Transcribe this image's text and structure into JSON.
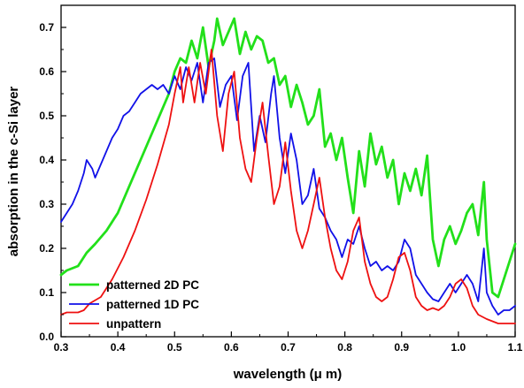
{
  "chart_data": {
    "type": "line",
    "xlabel": "wavelength (μ m)",
    "ylabel": "absorption in the c-Si layer",
    "xlim": [
      0.3,
      1.1
    ],
    "ylim": [
      0.0,
      0.75
    ],
    "xticks": [
      "0.3",
      "0.4",
      "0.5",
      "0.6",
      "0.7",
      "0.8",
      "0.9",
      "1.0",
      "1.1"
    ],
    "yticks": [
      "0.0",
      "0.1",
      "0.2",
      "0.3",
      "0.4",
      "0.5",
      "0.6",
      "0.7"
    ],
    "grid": false,
    "legend_position": "bottom-left",
    "series": [
      {
        "name": "patterned 2D PC",
        "color": "#22e01a",
        "points": [
          [
            0.3,
            0.14
          ],
          [
            0.31,
            0.15
          ],
          [
            0.33,
            0.16
          ],
          [
            0.345,
            0.19
          ],
          [
            0.36,
            0.21
          ],
          [
            0.38,
            0.24
          ],
          [
            0.4,
            0.28
          ],
          [
            0.42,
            0.34
          ],
          [
            0.44,
            0.4
          ],
          [
            0.46,
            0.46
          ],
          [
            0.48,
            0.52
          ],
          [
            0.49,
            0.55
          ],
          [
            0.5,
            0.6
          ],
          [
            0.51,
            0.63
          ],
          [
            0.52,
            0.62
          ],
          [
            0.53,
            0.67
          ],
          [
            0.54,
            0.63
          ],
          [
            0.55,
            0.7
          ],
          [
            0.56,
            0.61
          ],
          [
            0.57,
            0.67
          ],
          [
            0.575,
            0.72
          ],
          [
            0.585,
            0.66
          ],
          [
            0.595,
            0.69
          ],
          [
            0.605,
            0.72
          ],
          [
            0.615,
            0.64
          ],
          [
            0.625,
            0.69
          ],
          [
            0.635,
            0.65
          ],
          [
            0.645,
            0.68
          ],
          [
            0.655,
            0.67
          ],
          [
            0.665,
            0.62
          ],
          [
            0.675,
            0.63
          ],
          [
            0.685,
            0.57
          ],
          [
            0.695,
            0.59
          ],
          [
            0.705,
            0.52
          ],
          [
            0.715,
            0.57
          ],
          [
            0.725,
            0.53
          ],
          [
            0.735,
            0.48
          ],
          [
            0.745,
            0.5
          ],
          [
            0.755,
            0.56
          ],
          [
            0.765,
            0.43
          ],
          [
            0.775,
            0.46
          ],
          [
            0.785,
            0.4
          ],
          [
            0.795,
            0.45
          ],
          [
            0.805,
            0.36
          ],
          [
            0.815,
            0.28
          ],
          [
            0.825,
            0.42
          ],
          [
            0.835,
            0.34
          ],
          [
            0.845,
            0.46
          ],
          [
            0.855,
            0.39
          ],
          [
            0.865,
            0.43
          ],
          [
            0.875,
            0.36
          ],
          [
            0.885,
            0.4
          ],
          [
            0.895,
            0.3
          ],
          [
            0.905,
            0.37
          ],
          [
            0.915,
            0.33
          ],
          [
            0.925,
            0.38
          ],
          [
            0.935,
            0.32
          ],
          [
            0.945,
            0.41
          ],
          [
            0.955,
            0.22
          ],
          [
            0.965,
            0.16
          ],
          [
            0.975,
            0.22
          ],
          [
            0.985,
            0.25
          ],
          [
            0.995,
            0.21
          ],
          [
            1.005,
            0.24
          ],
          [
            1.015,
            0.28
          ],
          [
            1.025,
            0.3
          ],
          [
            1.035,
            0.23
          ],
          [
            1.045,
            0.35
          ],
          [
            1.05,
            0.22
          ],
          [
            1.06,
            0.1
          ],
          [
            1.07,
            0.09
          ],
          [
            1.08,
            0.13
          ],
          [
            1.09,
            0.17
          ],
          [
            1.1,
            0.21
          ]
        ]
      },
      {
        "name": "patterned 1D PC",
        "color": "#1111e8",
        "points": [
          [
            0.3,
            0.26
          ],
          [
            0.31,
            0.28
          ],
          [
            0.32,
            0.3
          ],
          [
            0.33,
            0.33
          ],
          [
            0.34,
            0.37
          ],
          [
            0.345,
            0.4
          ],
          [
            0.355,
            0.38
          ],
          [
            0.36,
            0.36
          ],
          [
            0.37,
            0.39
          ],
          [
            0.38,
            0.42
          ],
          [
            0.39,
            0.45
          ],
          [
            0.4,
            0.47
          ],
          [
            0.41,
            0.5
          ],
          [
            0.42,
            0.51
          ],
          [
            0.43,
            0.53
          ],
          [
            0.44,
            0.55
          ],
          [
            0.45,
            0.56
          ],
          [
            0.46,
            0.57
          ],
          [
            0.47,
            0.56
          ],
          [
            0.48,
            0.57
          ],
          [
            0.49,
            0.55
          ],
          [
            0.5,
            0.59
          ],
          [
            0.51,
            0.56
          ],
          [
            0.52,
            0.61
          ],
          [
            0.53,
            0.58
          ],
          [
            0.54,
            0.62
          ],
          [
            0.55,
            0.53
          ],
          [
            0.56,
            0.62
          ],
          [
            0.57,
            0.63
          ],
          [
            0.58,
            0.52
          ],
          [
            0.59,
            0.57
          ],
          [
            0.6,
            0.59
          ],
          [
            0.61,
            0.49
          ],
          [
            0.62,
            0.59
          ],
          [
            0.63,
            0.62
          ],
          [
            0.64,
            0.42
          ],
          [
            0.65,
            0.5
          ],
          [
            0.66,
            0.44
          ],
          [
            0.67,
            0.55
          ],
          [
            0.675,
            0.59
          ],
          [
            0.685,
            0.45
          ],
          [
            0.695,
            0.37
          ],
          [
            0.705,
            0.46
          ],
          [
            0.715,
            0.4
          ],
          [
            0.725,
            0.3
          ],
          [
            0.735,
            0.32
          ],
          [
            0.745,
            0.38
          ],
          [
            0.755,
            0.29
          ],
          [
            0.765,
            0.27
          ],
          [
            0.775,
            0.24
          ],
          [
            0.785,
            0.22
          ],
          [
            0.795,
            0.18
          ],
          [
            0.805,
            0.22
          ],
          [
            0.815,
            0.21
          ],
          [
            0.825,
            0.25
          ],
          [
            0.835,
            0.2
          ],
          [
            0.845,
            0.16
          ],
          [
            0.855,
            0.17
          ],
          [
            0.865,
            0.15
          ],
          [
            0.875,
            0.16
          ],
          [
            0.885,
            0.15
          ],
          [
            0.895,
            0.17
          ],
          [
            0.905,
            0.22
          ],
          [
            0.915,
            0.2
          ],
          [
            0.925,
            0.14
          ],
          [
            0.935,
            0.12
          ],
          [
            0.945,
            0.1
          ],
          [
            0.955,
            0.085
          ],
          [
            0.965,
            0.08
          ],
          [
            0.975,
            0.1
          ],
          [
            0.985,
            0.12
          ],
          [
            0.995,
            0.1
          ],
          [
            1.005,
            0.12
          ],
          [
            1.015,
            0.14
          ],
          [
            1.025,
            0.12
          ],
          [
            1.035,
            0.08
          ],
          [
            1.045,
            0.2
          ],
          [
            1.05,
            0.1
          ],
          [
            1.06,
            0.07
          ],
          [
            1.07,
            0.05
          ],
          [
            1.08,
            0.06
          ],
          [
            1.09,
            0.06
          ],
          [
            1.1,
            0.07
          ]
        ]
      },
      {
        "name": "unpattern",
        "color": "#ee1111",
        "points": [
          [
            0.3,
            0.05
          ],
          [
            0.31,
            0.055
          ],
          [
            0.33,
            0.055
          ],
          [
            0.34,
            0.06
          ],
          [
            0.35,
            0.075
          ],
          [
            0.37,
            0.09
          ],
          [
            0.39,
            0.13
          ],
          [
            0.41,
            0.18
          ],
          [
            0.43,
            0.24
          ],
          [
            0.45,
            0.31
          ],
          [
            0.47,
            0.39
          ],
          [
            0.49,
            0.48
          ],
          [
            0.5,
            0.55
          ],
          [
            0.51,
            0.61
          ],
          [
            0.515,
            0.53
          ],
          [
            0.525,
            0.61
          ],
          [
            0.535,
            0.53
          ],
          [
            0.545,
            0.62
          ],
          [
            0.555,
            0.55
          ],
          [
            0.565,
            0.65
          ],
          [
            0.575,
            0.5
          ],
          [
            0.585,
            0.42
          ],
          [
            0.595,
            0.55
          ],
          [
            0.605,
            0.6
          ],
          [
            0.615,
            0.45
          ],
          [
            0.625,
            0.38
          ],
          [
            0.635,
            0.35
          ],
          [
            0.645,
            0.45
          ],
          [
            0.655,
            0.53
          ],
          [
            0.665,
            0.41
          ],
          [
            0.675,
            0.3
          ],
          [
            0.685,
            0.34
          ],
          [
            0.695,
            0.44
          ],
          [
            0.705,
            0.33
          ],
          [
            0.715,
            0.24
          ],
          [
            0.725,
            0.2
          ],
          [
            0.735,
            0.24
          ],
          [
            0.745,
            0.3
          ],
          [
            0.755,
            0.36
          ],
          [
            0.765,
            0.27
          ],
          [
            0.775,
            0.2
          ],
          [
            0.785,
            0.15
          ],
          [
            0.795,
            0.13
          ],
          [
            0.805,
            0.17
          ],
          [
            0.815,
            0.24
          ],
          [
            0.825,
            0.27
          ],
          [
            0.835,
            0.17
          ],
          [
            0.845,
            0.12
          ],
          [
            0.855,
            0.09
          ],
          [
            0.865,
            0.08
          ],
          [
            0.875,
            0.09
          ],
          [
            0.885,
            0.13
          ],
          [
            0.895,
            0.18
          ],
          [
            0.905,
            0.19
          ],
          [
            0.915,
            0.15
          ],
          [
            0.925,
            0.09
          ],
          [
            0.935,
            0.07
          ],
          [
            0.945,
            0.06
          ],
          [
            0.955,
            0.065
          ],
          [
            0.965,
            0.06
          ],
          [
            0.975,
            0.07
          ],
          [
            0.985,
            0.09
          ],
          [
            0.995,
            0.12
          ],
          [
            1.005,
            0.13
          ],
          [
            1.015,
            0.11
          ],
          [
            1.025,
            0.07
          ],
          [
            1.035,
            0.05
          ],
          [
            1.05,
            0.04
          ],
          [
            1.07,
            0.03
          ],
          [
            1.08,
            0.03
          ],
          [
            1.1,
            0.03
          ]
        ]
      }
    ]
  }
}
